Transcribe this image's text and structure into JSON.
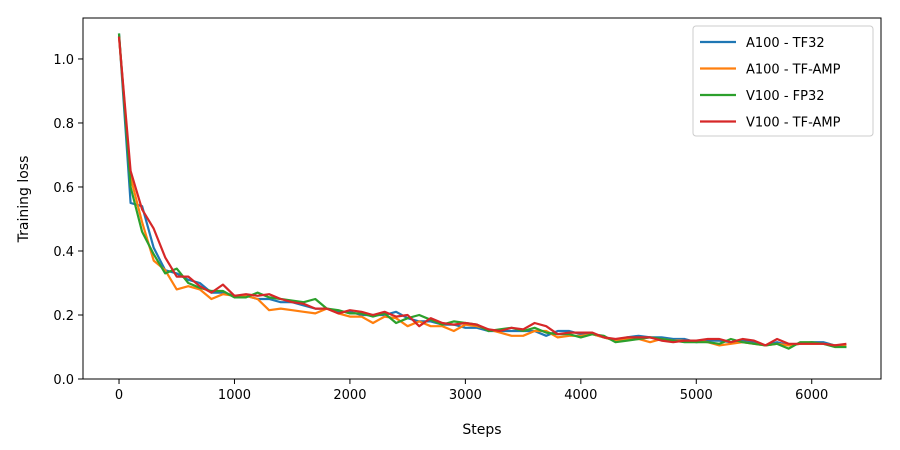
{
  "chart_data": {
    "type": "line",
    "title": "",
    "xlabel": "Steps",
    "ylabel": "Training loss",
    "xlim": [
      -312,
      6600
    ],
    "ylim": [
      0.0,
      1.128
    ],
    "xticks": [
      0,
      1000,
      2000,
      3000,
      4000,
      5000,
      6000
    ],
    "xtick_labels": [
      "0",
      "1000",
      "2000",
      "3000",
      "4000",
      "5000",
      "6000"
    ],
    "yticks": [
      0.0,
      0.2,
      0.4,
      0.6,
      0.8,
      1.0
    ],
    "ytick_labels": [
      "0.0",
      "0.2",
      "0.4",
      "0.6",
      "0.8",
      "1.0"
    ],
    "grid": false,
    "legend": "top-right",
    "x": [
      0,
      100,
      200,
      300,
      400,
      500,
      600,
      700,
      800,
      900,
      1000,
      1100,
      1200,
      1300,
      1400,
      1500,
      1600,
      1700,
      1800,
      1900,
      2000,
      2100,
      2200,
      2300,
      2400,
      2500,
      2600,
      2700,
      2800,
      2900,
      3000,
      3100,
      3200,
      3300,
      3400,
      3500,
      3600,
      3700,
      3800,
      3900,
      4000,
      4100,
      4200,
      4300,
      4400,
      4500,
      4600,
      4700,
      4800,
      4900,
      5000,
      5100,
      5200,
      5300,
      5400,
      5500,
      5600,
      5700,
      5800,
      5900,
      6000,
      6100,
      6200,
      6300
    ],
    "series": [
      {
        "name": "A100 - TF32",
        "color": "#1f77b4",
        "values": [
          1.08,
          0.55,
          0.54,
          0.41,
          0.34,
          0.33,
          0.31,
          0.3,
          0.27,
          0.27,
          0.26,
          0.26,
          0.25,
          0.25,
          0.24,
          0.24,
          0.23,
          0.22,
          0.22,
          0.21,
          0.21,
          0.2,
          0.2,
          0.2,
          0.21,
          0.19,
          0.18,
          0.18,
          0.17,
          0.17,
          0.16,
          0.16,
          0.15,
          0.15,
          0.15,
          0.15,
          0.15,
          0.135,
          0.15,
          0.15,
          0.14,
          0.14,
          0.13,
          0.12,
          0.13,
          0.135,
          0.13,
          0.13,
          0.125,
          0.125,
          0.115,
          0.12,
          0.12,
          0.115,
          0.12,
          0.115,
          0.105,
          0.115,
          0.105,
          0.11,
          0.115,
          0.115,
          0.105,
          0.1
        ]
      },
      {
        "name": "A100 - TF-AMP",
        "color": "#ff7f0e",
        "values": [
          1.07,
          0.63,
          0.49,
          0.37,
          0.34,
          0.28,
          0.29,
          0.28,
          0.25,
          0.265,
          0.26,
          0.26,
          0.25,
          0.215,
          0.22,
          0.215,
          0.21,
          0.205,
          0.22,
          0.205,
          0.195,
          0.195,
          0.175,
          0.195,
          0.19,
          0.165,
          0.18,
          0.165,
          0.165,
          0.15,
          0.17,
          0.165,
          0.155,
          0.145,
          0.135,
          0.135,
          0.15,
          0.15,
          0.13,
          0.135,
          0.135,
          0.14,
          0.13,
          0.12,
          0.125,
          0.125,
          0.115,
          0.125,
          0.12,
          0.12,
          0.12,
          0.115,
          0.105,
          0.11,
          0.115,
          0.11,
          0.105,
          0.11,
          0.105,
          0.11,
          0.11,
          0.11,
          0.105,
          0.105
        ]
      },
      {
        "name": "V100 - FP32",
        "color": "#2ca02c",
        "values": [
          1.08,
          0.6,
          0.46,
          0.39,
          0.33,
          0.345,
          0.3,
          0.285,
          0.275,
          0.275,
          0.255,
          0.255,
          0.27,
          0.255,
          0.25,
          0.245,
          0.24,
          0.25,
          0.22,
          0.215,
          0.205,
          0.205,
          0.195,
          0.205,
          0.175,
          0.19,
          0.2,
          0.185,
          0.17,
          0.18,
          0.175,
          0.17,
          0.15,
          0.155,
          0.16,
          0.15,
          0.16,
          0.145,
          0.14,
          0.14,
          0.13,
          0.14,
          0.135,
          0.115,
          0.12,
          0.125,
          0.13,
          0.125,
          0.12,
          0.115,
          0.115,
          0.115,
          0.11,
          0.125,
          0.115,
          0.11,
          0.105,
          0.11,
          0.095,
          0.115,
          0.115,
          0.11,
          0.1,
          0.1
        ]
      },
      {
        "name": "V100 - TF-AMP",
        "color": "#d62728",
        "values": [
          1.07,
          0.65,
          0.53,
          0.47,
          0.38,
          0.32,
          0.32,
          0.29,
          0.27,
          0.295,
          0.26,
          0.265,
          0.26,
          0.265,
          0.25,
          0.24,
          0.235,
          0.22,
          0.22,
          0.205,
          0.215,
          0.21,
          0.2,
          0.21,
          0.195,
          0.2,
          0.165,
          0.19,
          0.175,
          0.17,
          0.175,
          0.17,
          0.155,
          0.15,
          0.16,
          0.155,
          0.175,
          0.165,
          0.14,
          0.145,
          0.145,
          0.145,
          0.13,
          0.125,
          0.13,
          0.13,
          0.13,
          0.12,
          0.115,
          0.12,
          0.12,
          0.125,
          0.125,
          0.115,
          0.125,
          0.12,
          0.105,
          0.125,
          0.11,
          0.11,
          0.11,
          0.11,
          0.105,
          0.11
        ]
      }
    ]
  }
}
